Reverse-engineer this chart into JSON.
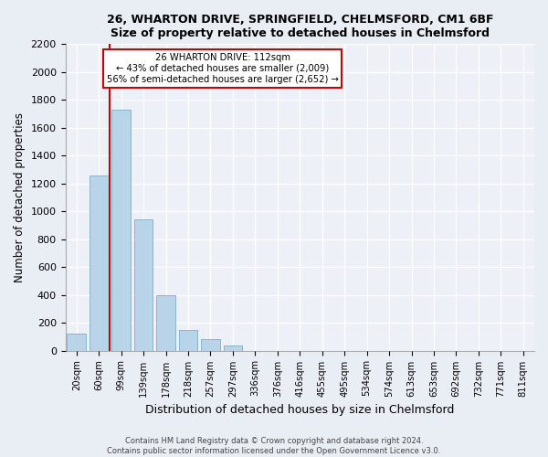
{
  "title1": "26, WHARTON DRIVE, SPRINGFIELD, CHELMSFORD, CM1 6BF",
  "title2": "Size of property relative to detached houses in Chelmsford",
  "xlabel": "Distribution of detached houses by size in Chelmsford",
  "ylabel": "Number of detached properties",
  "bar_labels": [
    "20sqm",
    "60sqm",
    "99sqm",
    "139sqm",
    "178sqm",
    "218sqm",
    "257sqm",
    "297sqm",
    "336sqm",
    "376sqm",
    "416sqm",
    "455sqm",
    "495sqm",
    "534sqm",
    "574sqm",
    "613sqm",
    "653sqm",
    "692sqm",
    "732sqm",
    "771sqm",
    "811sqm"
  ],
  "bar_values": [
    120,
    1260,
    1730,
    940,
    400,
    150,
    80,
    35,
    0,
    0,
    0,
    0,
    0,
    0,
    0,
    0,
    0,
    0,
    0,
    0,
    0
  ],
  "bar_color": "#b8d4e8",
  "bar_edge_color": "#8ab4d0",
  "marker_line_color": "#cc0000",
  "annotation_title": "26 WHARTON DRIVE: 112sqm",
  "annotation_line1": "← 43% of detached houses are smaller (2,009)",
  "annotation_line2": "56% of semi-detached houses are larger (2,652) →",
  "annotation_box_color": "#ffffff",
  "annotation_box_edge": "#cc0000",
  "ylim": [
    0,
    2200
  ],
  "yticks": [
    0,
    200,
    400,
    600,
    800,
    1000,
    1200,
    1400,
    1600,
    1800,
    2000,
    2200
  ],
  "footnote1": "Contains HM Land Registry data © Crown copyright and database right 2024.",
  "footnote2": "Contains public sector information licensed under the Open Government Licence v3.0.",
  "bg_color": "#e8eef4",
  "plot_bg_color": "#edf1f7"
}
